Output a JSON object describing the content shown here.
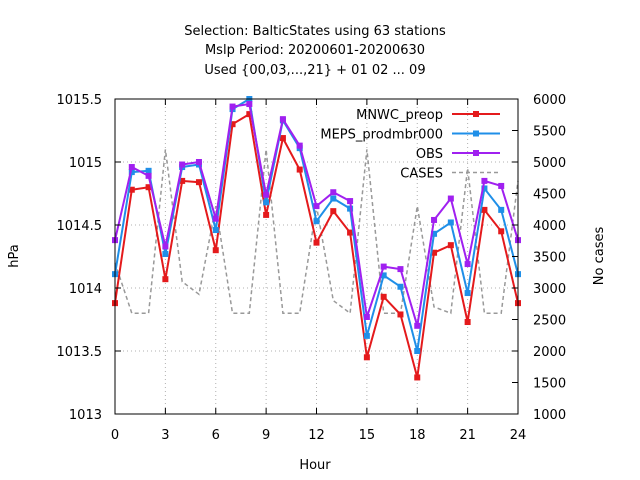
{
  "chart_data": {
    "type": "line",
    "title_lines": [
      "Selection: BalticStates using    63 stations",
      "Mslp   Period: 20200601-20200630",
      "Used {00,03,...,21} + 01 02 ... 09"
    ],
    "xlabel": "Hour",
    "ylabel": "hPa",
    "y2label": "No cases",
    "xlim": [
      0,
      24
    ],
    "ylim": [
      1013,
      1015.5
    ],
    "y2lim": [
      1000,
      6000
    ],
    "xticks": [
      0,
      3,
      6,
      9,
      12,
      15,
      18,
      21,
      24
    ],
    "yticks": [
      1013,
      1013.5,
      1014,
      1014.5,
      1015,
      1015.5
    ],
    "y2ticks": [
      1000,
      1500,
      2000,
      2500,
      3000,
      3500,
      4000,
      4500,
      5000,
      5500,
      6000
    ],
    "grid": true,
    "legend_position": "top-right",
    "x": [
      0,
      1,
      2,
      3,
      4,
      5,
      6,
      7,
      8,
      9,
      10,
      11,
      12,
      13,
      14,
      15,
      16,
      17,
      18,
      19,
      20,
      21,
      22,
      23,
      24
    ],
    "series": [
      {
        "name": "MNWC_preop",
        "color": "#e41a1c",
        "axis": "y",
        "style": "solid",
        "marker": true,
        "values": [
          1013.88,
          1014.78,
          1014.8,
          1014.07,
          1014.85,
          1014.84,
          1014.3,
          1015.3,
          1015.38,
          1014.58,
          1015.19,
          1014.94,
          1014.36,
          1014.61,
          1014.44,
          1013.45,
          1013.93,
          1013.79,
          1013.29,
          1014.28,
          1014.34,
          1013.73,
          1014.62,
          1014.45,
          1013.88
        ]
      },
      {
        "name": "MEPS_prodmbr000",
        "color": "#1f8fe8",
        "axis": "y",
        "style": "solid",
        "marker": true,
        "values": [
          1014.11,
          1014.92,
          1014.93,
          1014.27,
          1014.96,
          1014.98,
          1014.46,
          1015.42,
          1015.5,
          1014.68,
          1015.33,
          1015.11,
          1014.53,
          1014.71,
          1014.63,
          1013.62,
          1014.1,
          1014.01,
          1013.5,
          1014.43,
          1014.52,
          1013.96,
          1014.79,
          1014.62,
          1014.11
        ]
      },
      {
        "name": "OBS",
        "color": "#a020f0",
        "axis": "y",
        "style": "solid",
        "marker": true,
        "values": [
          1014.38,
          1014.96,
          1014.89,
          1014.33,
          1014.98,
          1015.0,
          1014.55,
          1015.44,
          1015.46,
          1014.74,
          1015.34,
          1015.13,
          1014.65,
          1014.76,
          1014.69,
          1013.77,
          1014.17,
          1014.15,
          1013.7,
          1014.54,
          1014.71,
          1014.19,
          1014.85,
          1014.81,
          1014.38
        ]
      },
      {
        "name": "CASES",
        "color": "#999999",
        "axis": "y2",
        "style": "dashed",
        "marker": false,
        "values": [
          3400,
          2600,
          2600,
          5200,
          3100,
          2900,
          4300,
          2600,
          2600,
          5200,
          2600,
          2600,
          4300,
          2800,
          2600,
          5200,
          2600,
          2600,
          4300,
          2700,
          2600,
          4900,
          2600,
          2600,
          4700
        ]
      }
    ]
  }
}
